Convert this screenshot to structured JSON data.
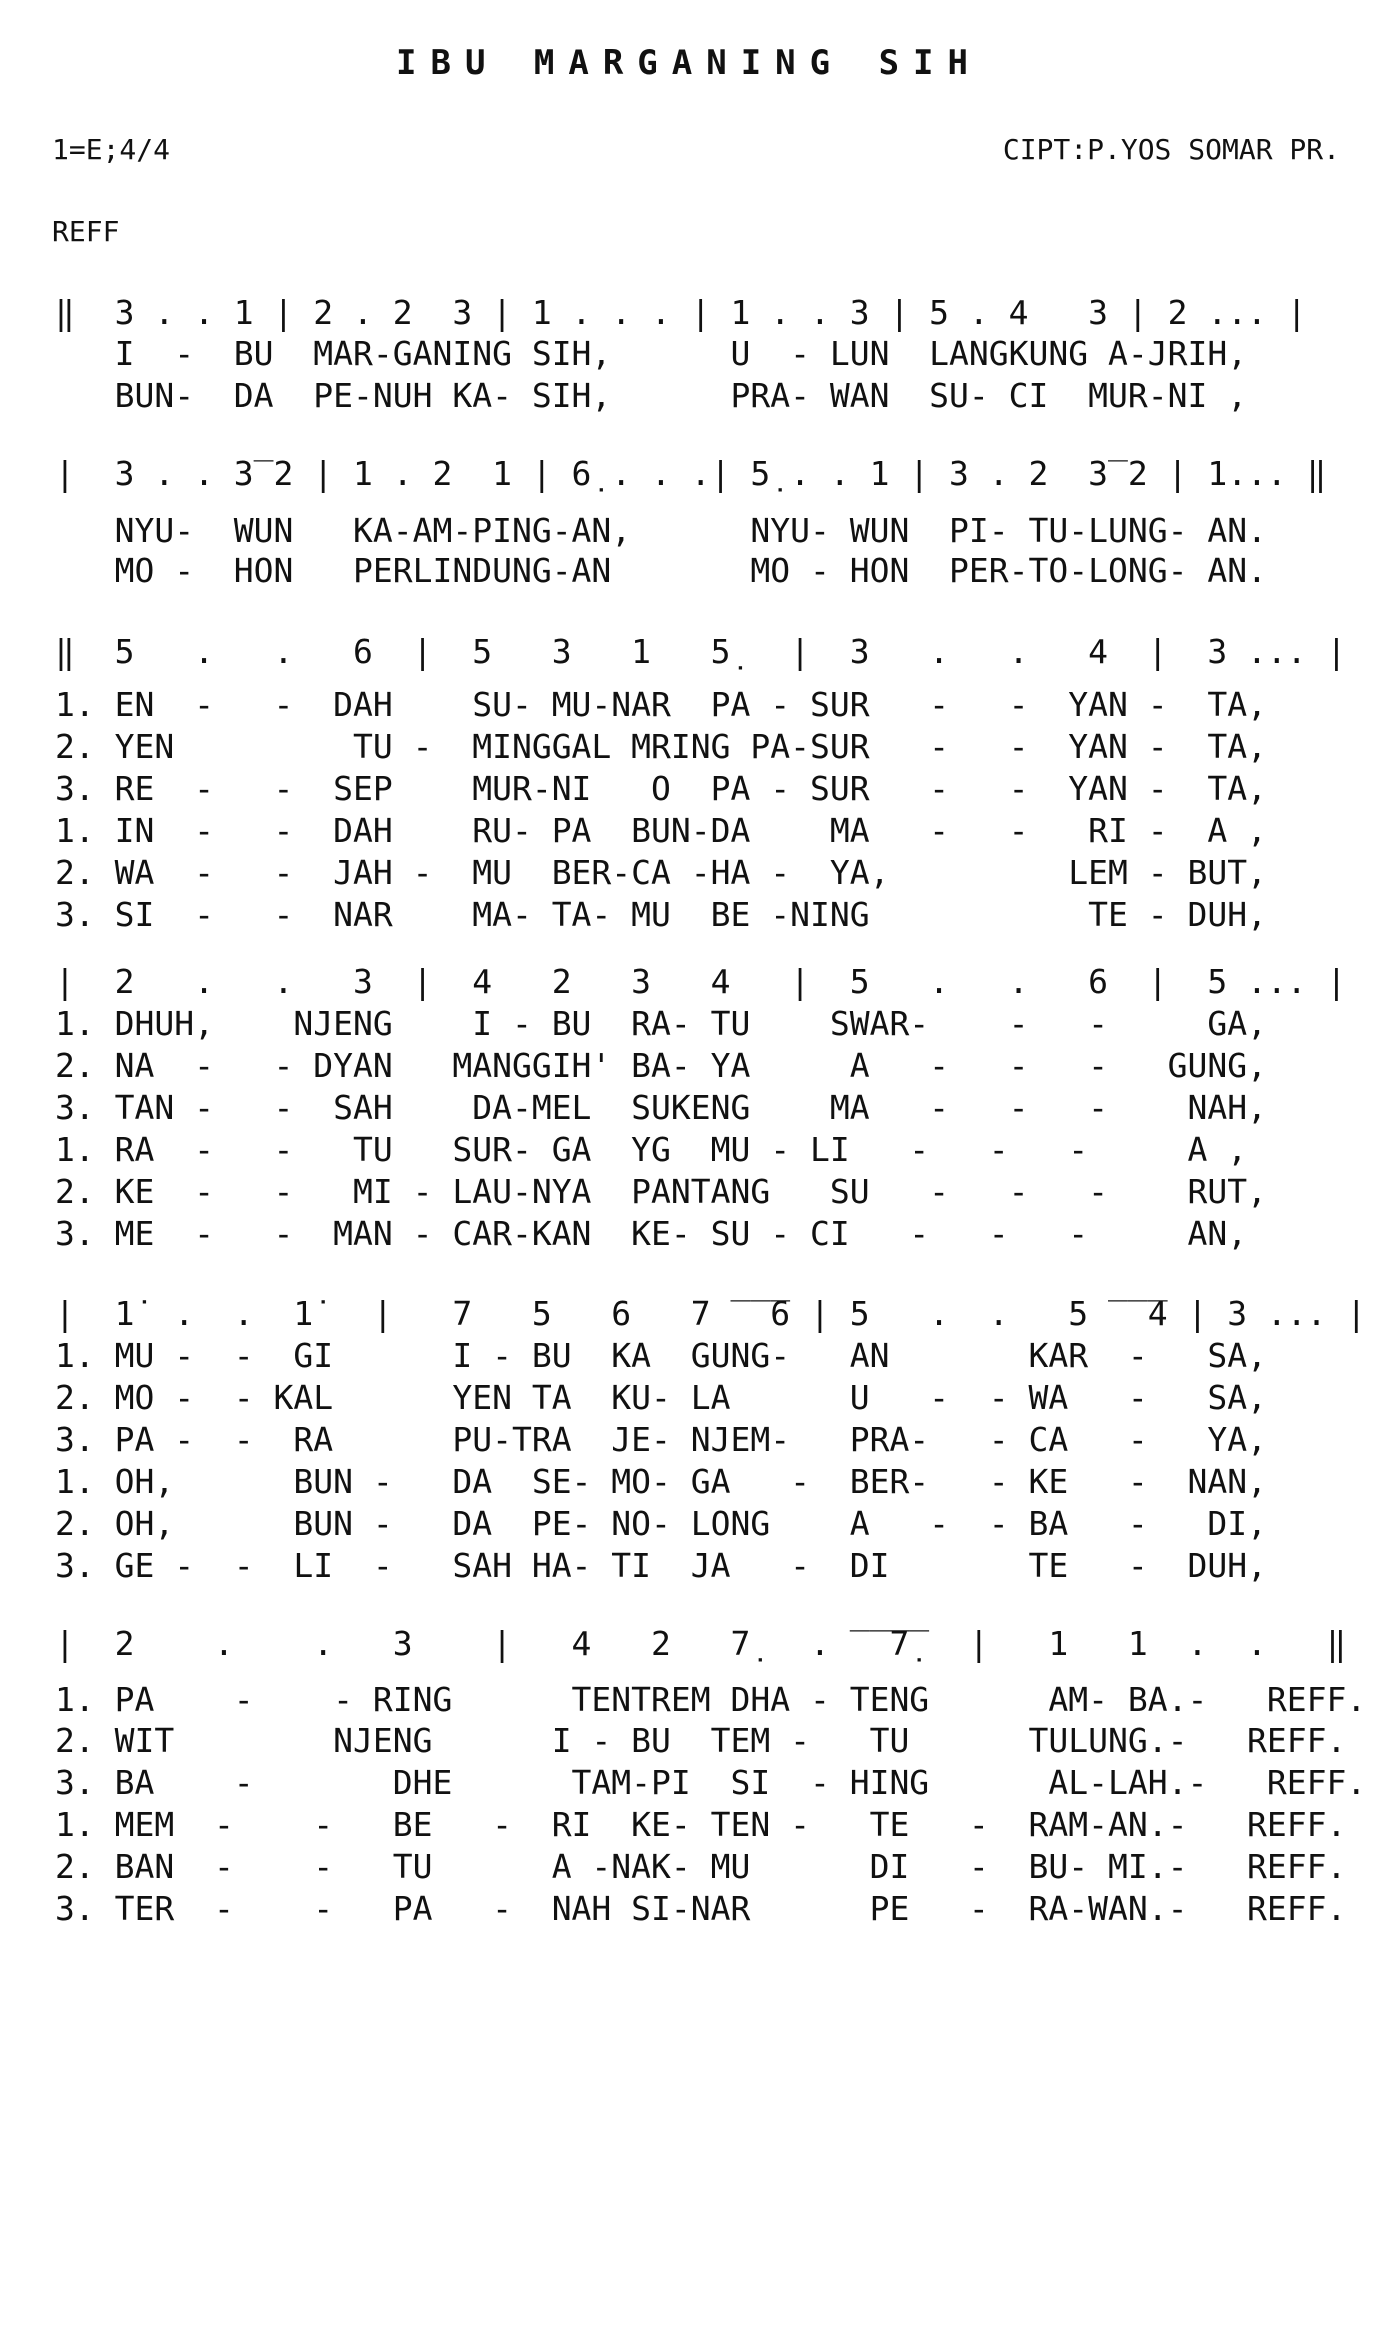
{
  "title": "IBU MARGANING SIH",
  "key_signature": "1=E;4/4",
  "composer": "CIPT:P.YOS SOMAR PR.",
  "section_label": "REFF",
  "systems": [
    {
      "notation": "‖  3 . . 1 | 2 . 2  3 | 1 . . . | 1 . . 3 | 5 . 4   3 | 2 ... |",
      "lyrics": [
        "   I  -  BU  MAR-GANING SIH,      U  - LUN  LANGKUNG A-JRIH,",
        "   BUN-  DA  PE-NUH KA- SIH,      PRA- WAN  SU- CI  MUR-NI ,"
      ]
    },
    {
      "notation": "|  3 . . 3̅ 2 | 1 . 2  1 | 6̣ . . .| 5̣ . . 1 | 3 . 2  3̅ 2 | 1... ‖",
      "lyrics": [
        "   NYU-  WUN   KA-AM-PING-AN,      NYU- WUN  PI- TU-LUNG- AN.",
        "   MO -  HON   PERLINDUNG-AN       MO - HON  PER-TO-LONG- AN."
      ]
    },
    {
      "notation": "‖  5   .   .   6  |  5   3   1   5̣   |  3   .   .   4  |  3 ... |",
      "lyrics": [
        "1. EN  -   -  DAH    SU- MU-NAR  PA - SUR   -   -  YAN -  TA,",
        "2. YEN         TU -  MINGGAL MRING PA-SUR   -   -  YAN -  TA,",
        "3. RE  -   -  SEP    MUR-NI   O  PA - SUR   -   -  YAN -  TA,",
        "1. IN  -   -  DAH    RU- PA  BUN-DA    MA   -   -   RI -  A ,",
        "2. WA  -   -  JAH -  MU  BER-CA -HA -  YA,         LEM - BUT,",
        "3. SI  -   -  NAR    MA- TA- MU  BE -NING           TE - DUH,"
      ]
    },
    {
      "notation": "|  2   .   .   3  |  4   2   3   4   |  5   .   .   6  |  5 ... |",
      "lyrics": [
        "1. DHUH,    NJENG    I - BU  RA- TU    SWAR-    -   -     GA,",
        "2. NA  -   - DYAN   MANGGIH' BA- YA     A   -   -   -   GUNG,",
        "3. TAN -   -  SAH    DA-MEL  SUKENG    MA   -   -   -    NAH,",
        "1. RA  -   -   TU   SUR- GA  YG  MU - LI   -   -   -     A ,",
        "2. KE  -   -   MI - LAU-NYA  PANTANG   SU   -   -   -    RUT,",
        "3. ME  -   -  MAN - CAR-KAN  KE- SU - CI   -   -   -     AN,"
      ]
    },
    {
      "notation": "|  1̇  .  .  1̇   |   7   5   6   7 ̅ ̅ ̅6 | 5   .  .   5 ̅ ̅ ̅4 | 3 ... |",
      "lyrics": [
        "1. MU -  -  GI      I - BU  KA  GUNG-   AN       KAR  -   SA,",
        "2. MO -  - KAL      YEN TA  KU- LA      U   -  - WA   -   SA,",
        "3. PA -  -  RA      PU-TRA  JE- NJEM-   PRA-   - CA   -   YA,",
        "1. OH,      BUN -   DA  SE- MO- GA   -  BER-   - KE   -  NAN,",
        "2. OH,      BUN -   DA  PE- NO- LONG    A   -  - BA   -   DI,",
        "3. GE -  -  LI  -   SAH HA- TI  JA   -  DI       TE   -  DUH,"
      ]
    },
    {
      "notation": "|  2    .    .   3    |   4   2   7̣   . ̅ ̅ ̅7̣̅   |   1   1  .  .   ‖",
      "lyrics": [
        "1. PA    -    - RING      TENTREM DHA - TENG      AM- BA.-   REFF.",
        "2. WIT        NJENG      I - BU  TEM -   TU      TULUNG.-   REFF.",
        "3. BA    -       DHE      TAM-PI  SI  - HING      AL-LAH.-   REFF.",
        "1. MEM  -    -   BE   -  RI  KE- TEN -   TE   -  RAM-AN.-   REFF.",
        "2. BAN  -    -   TU      A -NAK- MU      DI   -  BU- MI.-   REFF.",
        "3. TER  -    -   PA   -  NAH SI-NAR      PE   -  RA-WAN.-   REFF."
      ]
    }
  ]
}
